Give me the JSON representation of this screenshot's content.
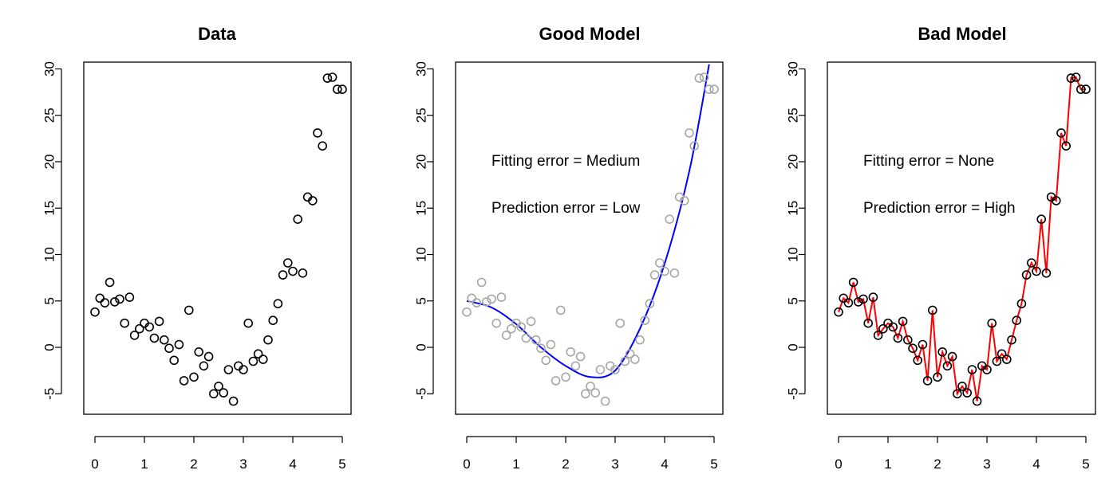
{
  "chart_data": [
    {
      "type": "scatter",
      "title": "Data",
      "xlabel": "",
      "ylabel": "",
      "xlim": [
        0,
        5
      ],
      "ylim": [
        -7,
        30
      ],
      "xticks": [
        "0",
        "1",
        "2",
        "3",
        "4",
        "5"
      ],
      "yticks": [
        "-5",
        "0",
        "5",
        "10",
        "15",
        "20",
        "25",
        "30"
      ],
      "grid": false,
      "point_color": "#000000",
      "points": {
        "x": [
          0.0,
          0.1,
          0.2,
          0.3,
          0.4,
          0.5,
          0.6,
          0.7,
          0.8,
          0.9,
          1.0,
          1.1,
          1.2,
          1.3,
          1.4,
          1.5,
          1.6,
          1.7,
          1.8,
          1.9,
          2.0,
          2.1,
          2.2,
          2.3,
          2.4,
          2.5,
          2.6,
          2.7,
          2.8,
          2.9,
          3.0,
          3.1,
          3.2,
          3.3,
          3.4,
          3.5,
          3.6,
          3.7,
          3.8,
          3.9,
          4.0,
          4.1,
          4.2,
          4.3,
          4.4,
          4.5,
          4.6,
          4.7,
          4.8,
          4.9,
          5.0
        ],
        "y": [
          3.8,
          5.3,
          4.8,
          7.0,
          4.9,
          5.2,
          2.6,
          5.4,
          1.3,
          2.0,
          2.6,
          2.2,
          1.0,
          2.8,
          0.8,
          -0.1,
          -1.4,
          0.3,
          -3.6,
          4.0,
          -3.2,
          -0.5,
          -2.0,
          -1.0,
          -5.0,
          -4.2,
          -4.9,
          -2.4,
          -5.8,
          -2.0,
          -2.4,
          2.6,
          -1.5,
          -0.7,
          -1.3,
          0.8,
          2.9,
          4.7,
          7.8,
          9.1,
          8.2,
          13.8,
          8.0,
          16.2,
          15.8,
          23.1,
          21.7,
          29.0,
          29.1,
          27.8,
          27.8
        ]
      }
    },
    {
      "type": "scatter",
      "title": "Good Model",
      "xlabel": "",
      "ylabel": "",
      "xlim": [
        0,
        5
      ],
      "ylim": [
        -7,
        30
      ],
      "xticks": [
        "0",
        "1",
        "2",
        "3",
        "4",
        "5"
      ],
      "yticks": [
        "-5",
        "0",
        "5",
        "10",
        "15",
        "20",
        "25",
        "30"
      ],
      "grid": false,
      "point_color": "#a6a6a6",
      "annotations": [
        "Fitting error = Medium",
        "Prediction error = Low"
      ],
      "fit": {
        "color": "#0000ff",
        "x": [
          0.0,
          0.5,
          1.0,
          1.5,
          2.0,
          2.5,
          3.0,
          3.5,
          4.0,
          4.5,
          4.9
        ],
        "y": [
          5.0,
          4.3,
          2.5,
          0.0,
          -2.0,
          -3.2,
          -2.5,
          2.0,
          9.0,
          19.0,
          30.5
        ]
      },
      "points": {
        "x": [
          0.0,
          0.1,
          0.2,
          0.3,
          0.4,
          0.5,
          0.6,
          0.7,
          0.8,
          0.9,
          1.0,
          1.1,
          1.2,
          1.3,
          1.4,
          1.5,
          1.6,
          1.7,
          1.8,
          1.9,
          2.0,
          2.1,
          2.2,
          2.3,
          2.4,
          2.5,
          2.6,
          2.7,
          2.8,
          2.9,
          3.0,
          3.1,
          3.2,
          3.3,
          3.4,
          3.5,
          3.6,
          3.7,
          3.8,
          3.9,
          4.0,
          4.1,
          4.2,
          4.3,
          4.4,
          4.5,
          4.6,
          4.7,
          4.8,
          4.9,
          5.0
        ],
        "y": [
          3.8,
          5.3,
          4.8,
          7.0,
          4.9,
          5.2,
          2.6,
          5.4,
          1.3,
          2.0,
          2.6,
          2.2,
          1.0,
          2.8,
          0.8,
          -0.1,
          -1.4,
          0.3,
          -3.6,
          4.0,
          -3.2,
          -0.5,
          -2.0,
          -1.0,
          -5.0,
          -4.2,
          -4.9,
          -2.4,
          -5.8,
          -2.0,
          -2.4,
          2.6,
          -1.5,
          -0.7,
          -1.3,
          0.8,
          2.9,
          4.7,
          7.8,
          9.1,
          8.2,
          13.8,
          8.0,
          16.2,
          15.8,
          23.1,
          21.7,
          29.0,
          29.1,
          27.8,
          27.8
        ]
      }
    },
    {
      "type": "scatter",
      "title": "Bad Model",
      "xlabel": "",
      "ylabel": "",
      "xlim": [
        0,
        5
      ],
      "ylim": [
        -7,
        30
      ],
      "xticks": [
        "0",
        "1",
        "2",
        "3",
        "4",
        "5"
      ],
      "yticks": [
        "-5",
        "0",
        "5",
        "10",
        "15",
        "20",
        "25",
        "30"
      ],
      "grid": false,
      "point_color": "#000000",
      "annotations": [
        "Fitting error = None",
        "Prediction error = High"
      ],
      "fit": {
        "color": "#ff0000",
        "connects_points": true
      },
      "points": {
        "x": [
          0.0,
          0.1,
          0.2,
          0.3,
          0.4,
          0.5,
          0.6,
          0.7,
          0.8,
          0.9,
          1.0,
          1.1,
          1.2,
          1.3,
          1.4,
          1.5,
          1.6,
          1.7,
          1.8,
          1.9,
          2.0,
          2.1,
          2.2,
          2.3,
          2.4,
          2.5,
          2.6,
          2.7,
          2.8,
          2.9,
          3.0,
          3.1,
          3.2,
          3.3,
          3.4,
          3.5,
          3.6,
          3.7,
          3.8,
          3.9,
          4.0,
          4.1,
          4.2,
          4.3,
          4.4,
          4.5,
          4.6,
          4.7,
          4.8,
          4.9,
          5.0
        ],
        "y": [
          3.8,
          5.3,
          4.8,
          7.0,
          4.9,
          5.2,
          2.6,
          5.4,
          1.3,
          2.0,
          2.6,
          2.2,
          1.0,
          2.8,
          0.8,
          -0.1,
          -1.4,
          0.3,
          -3.6,
          4.0,
          -3.2,
          -0.5,
          -2.0,
          -1.0,
          -5.0,
          -4.2,
          -4.9,
          -2.4,
          -5.8,
          -2.0,
          -2.4,
          2.6,
          -1.5,
          -0.7,
          -1.3,
          0.8,
          2.9,
          4.7,
          7.8,
          9.1,
          8.2,
          13.8,
          8.0,
          16.2,
          15.8,
          23.1,
          21.7,
          29.0,
          29.1,
          27.8,
          27.8
        ]
      }
    }
  ]
}
